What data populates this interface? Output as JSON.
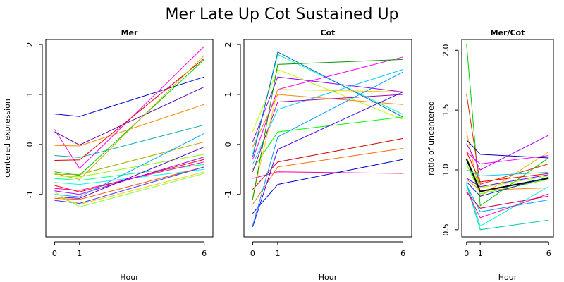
{
  "figure": {
    "title": "Mer Late Up Cot Sustained Up"
  },
  "chart_data": [
    {
      "type": "line",
      "title": "Mer",
      "xlabel": "Hour",
      "ylabel": "centered expression",
      "x": [
        "0",
        "1",
        "6"
      ],
      "ylim": [
        -1.85,
        2.1
      ],
      "yticks": [
        -1,
        0,
        1,
        2
      ],
      "yticklabels": [
        "-1",
        "0",
        "1",
        "2"
      ],
      "grid": false,
      "series": [
        {
          "color": "#0000cc",
          "values": [
            0.61,
            0.56,
            1.35
          ]
        },
        {
          "color": "#ff00ff",
          "values": [
            0.3,
            -0.48,
            1.96
          ]
        },
        {
          "color": "#5500aa",
          "values": [
            0.25,
            -0.01,
            1.15
          ]
        },
        {
          "color": "#ff8800",
          "values": [
            -0.02,
            -0.03,
            0.8
          ]
        },
        {
          "color": "#00aaaa",
          "values": [
            -0.22,
            -0.26,
            0.39
          ]
        },
        {
          "color": "#dd0000",
          "values": [
            -0.32,
            -0.31,
            1.72
          ]
        },
        {
          "color": "#00cc00",
          "values": [
            -0.55,
            -0.62,
            1.7
          ]
        },
        {
          "color": "#ccaa00",
          "values": [
            -0.58,
            -0.7,
            1.78
          ]
        },
        {
          "color": "#aaaa00",
          "values": [
            -0.6,
            -0.6,
            0.05
          ]
        },
        {
          "color": "#88ff00",
          "values": [
            -0.63,
            -0.65,
            -0.2
          ]
        },
        {
          "color": "#00ff88",
          "values": [
            -0.68,
            -0.72,
            -0.4
          ]
        },
        {
          "color": "#00ffff",
          "values": [
            -0.76,
            -0.8,
            -0.5
          ]
        },
        {
          "color": "#ff0000",
          "values": [
            -0.82,
            -0.95,
            -0.3
          ]
        },
        {
          "color": "#ff00aa",
          "values": [
            -0.88,
            -0.92,
            -0.35
          ]
        },
        {
          "color": "#aa00ff",
          "values": [
            -0.93,
            -1.0,
            -0.25
          ]
        },
        {
          "color": "#00aaff",
          "values": [
            -1.0,
            -1.05,
            0.22
          ]
        },
        {
          "color": "#6600cc",
          "values": [
            -1.05,
            -1.08,
            -0.05
          ]
        },
        {
          "color": "#ff5500",
          "values": [
            -1.08,
            -1.1,
            -0.45
          ]
        },
        {
          "color": "#3333ff",
          "values": [
            -1.12,
            -1.18,
            -0.45
          ]
        },
        {
          "color": "#ffcc00",
          "values": [
            -1.04,
            -1.2,
            -0.55
          ]
        },
        {
          "color": "#88ff44",
          "values": [
            -0.95,
            -1.25,
            -0.58
          ]
        }
      ]
    },
    {
      "type": "line",
      "title": "Cot",
      "xlabel": "Hour",
      "ylabel": "",
      "x": [
        "0",
        "1",
        "6"
      ],
      "ylim": [
        -1.85,
        2.1
      ],
      "yticks": [
        -1,
        0,
        1,
        2
      ],
      "yticklabels": [
        "-1",
        "0",
        "1",
        "2"
      ],
      "grid": false,
      "series": [
        {
          "color": "#bbff00",
          "values": [
            0.25,
            1.5,
            0.5
          ]
        },
        {
          "color": "#9900ff",
          "values": [
            0.05,
            1.35,
            1.05
          ]
        },
        {
          "color": "#ff8800",
          "values": [
            -0.05,
            1.0,
            0.8
          ]
        },
        {
          "color": "#00ffaa",
          "values": [
            -0.2,
            1.8,
            0.6
          ]
        },
        {
          "color": "#0066cc",
          "values": [
            -0.25,
            1.85,
            0.55
          ]
        },
        {
          "color": "#ff00ff",
          "values": [
            -0.3,
            1.1,
            1.75
          ]
        },
        {
          "color": "#00ccff",
          "values": [
            -0.4,
            0.7,
            1.5
          ]
        },
        {
          "color": "#00ff00",
          "values": [
            -0.5,
            0.25,
            0.55
          ]
        },
        {
          "color": "#aa00aa",
          "values": [
            -0.55,
            0.85,
            1.0
          ]
        },
        {
          "color": "#ff00aa",
          "values": [
            -0.68,
            -0.55,
            -0.58
          ]
        },
        {
          "color": "#cc0000",
          "values": [
            -0.9,
            -0.35,
            0.12
          ]
        },
        {
          "color": "#ffcc00",
          "values": [
            -1.05,
            1.1,
            1.05
          ]
        },
        {
          "color": "#009900",
          "values": [
            -1.1,
            1.6,
            1.7
          ]
        },
        {
          "color": "#ff6600",
          "values": [
            -1.2,
            -0.45,
            -0.08
          ]
        },
        {
          "color": "#0000cc",
          "values": [
            -1.38,
            -0.8,
            -0.3
          ]
        },
        {
          "color": "#4400ff",
          "values": [
            -1.65,
            -0.1,
            1.05
          ]
        },
        {
          "color": "#0099ff",
          "values": [
            -1.62,
            0.15,
            1.45
          ]
        }
      ]
    },
    {
      "type": "line",
      "title": "Mer/Cot",
      "xlabel": "Hour",
      "ylabel": "ratio of uncentered",
      "x": [
        "0",
        "1",
        "6"
      ],
      "ylim": [
        0.44,
        2.09
      ],
      "yticks": [
        0.5,
        1.0,
        1.5,
        2.0
      ],
      "yticklabels": [
        "0.5",
        "1.0",
        "1.5",
        "2.0"
      ],
      "grid": false,
      "series": [
        {
          "color": "#00cc00",
          "values": [
            2.05,
            0.7,
            1.1
          ]
        },
        {
          "color": "#dd2200",
          "values": [
            1.63,
            0.88,
            1.05
          ]
        },
        {
          "color": "#ffaa00",
          "values": [
            1.32,
            0.78,
            1.15
          ]
        },
        {
          "color": "#0000aa",
          "values": [
            1.25,
            1.13,
            1.1
          ]
        },
        {
          "color": "#aa00ff",
          "values": [
            1.22,
            1.0,
            1.29
          ]
        },
        {
          "color": "#ff00ff",
          "values": [
            1.15,
            1.05,
            1.12
          ]
        },
        {
          "color": "#ff0000",
          "values": [
            1.15,
            0.9,
            0.97
          ]
        },
        {
          "color": "#aaff00",
          "values": [
            1.1,
            0.85,
            0.95
          ]
        },
        {
          "color": "#000000",
          "values": [
            1.09,
            0.82,
            0.93
          ]
        },
        {
          "color": "#66ff00",
          "values": [
            1.05,
            0.8,
            0.92
          ]
        },
        {
          "color": "#00ccff",
          "values": [
            1.0,
            0.95,
            0.98
          ]
        },
        {
          "color": "#6600ff",
          "values": [
            0.93,
            0.86,
            0.96
          ]
        },
        {
          "color": "#ff8800",
          "values": [
            0.92,
            0.83,
            0.85
          ]
        },
        {
          "color": "#0033cc",
          "values": [
            0.9,
            0.78,
            0.94
          ]
        },
        {
          "color": "#00ffcc",
          "values": [
            0.89,
            0.53,
            0.86
          ]
        },
        {
          "color": "#00ccaa",
          "values": [
            0.88,
            0.5,
            0.58
          ]
        },
        {
          "color": "#00aaff",
          "values": [
            0.87,
            0.65,
            0.75
          ]
        },
        {
          "color": "#ff00aa",
          "values": [
            0.83,
            0.6,
            0.8
          ]
        },
        {
          "color": "#cc0055",
          "values": [
            0.81,
            0.68,
            0.78
          ]
        }
      ]
    }
  ]
}
